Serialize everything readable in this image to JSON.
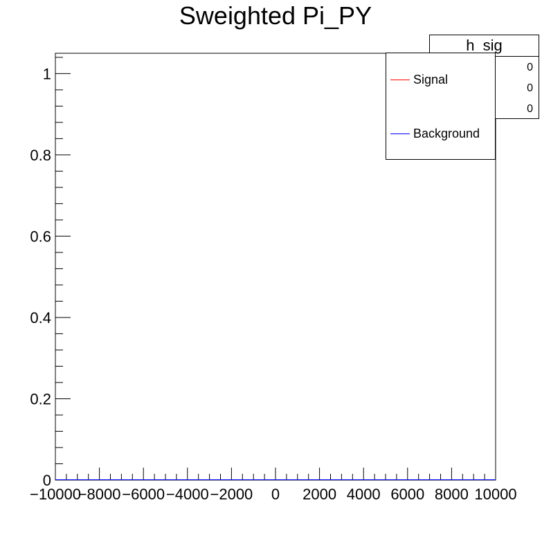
{
  "chart_data": {
    "type": "line",
    "title": "Sweighted Pi_PY",
    "xlabel": "",
    "ylabel": "",
    "xlim": [
      -10000,
      10000
    ],
    "ylim": [
      0,
      1.05
    ],
    "x_ticks": [
      "-10000",
      "-8000",
      "-6000",
      "-4000",
      "-2000",
      "0",
      "2000",
      "4000",
      "6000",
      "8000",
      "10000"
    ],
    "y_ticks": [
      "0",
      "0.2",
      "0.4",
      "0.6",
      "0.8",
      "1"
    ],
    "series": [
      {
        "name": "Signal",
        "color": "#ff0000",
        "x": [
          -10000,
          10000
        ],
        "y": [
          0,
          0
        ]
      },
      {
        "name": "Background",
        "color": "#0000ff",
        "x": [
          -10000,
          10000
        ],
        "y": [
          0,
          0
        ]
      }
    ],
    "legend_position": "top-right"
  },
  "stats_box": {
    "title": "h_sig",
    "values": [
      "0",
      "0",
      "0"
    ]
  }
}
